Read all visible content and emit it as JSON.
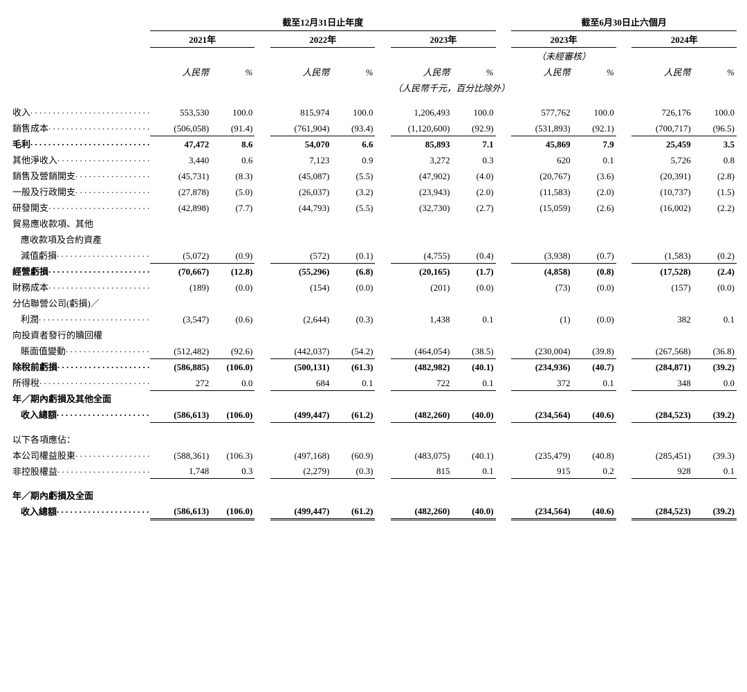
{
  "periods": {
    "annual_header": "截至12月31日止年度",
    "interim_header": "截至6月30日止六個月",
    "years": [
      "2021年",
      "2022年",
      "2023年",
      "2023年",
      "2024年"
    ],
    "unaudited": "（未經審核）",
    "currency": "人民幣",
    "pct": "%",
    "unit_note": "（人民幣千元，百分比除外）"
  },
  "rows": [
    {
      "label": "收入",
      "bold": false,
      "dots": true,
      "vals": [
        "553,530",
        "100.0",
        "815,974",
        "100.0",
        "1,206,493",
        "100.0",
        "577,762",
        "100.0",
        "726,176",
        "100.0"
      ]
    },
    {
      "label": "銷售成本",
      "bold": false,
      "dots": true,
      "ul": "single",
      "vals": [
        "(506,058)",
        "(91.4)",
        "(761,904)",
        "(93.4)",
        "(1,120,600)",
        "(92.9)",
        "(531,893)",
        "(92.1)",
        "(700,717)",
        "(96.5)"
      ]
    },
    {
      "label": "毛利",
      "bold": true,
      "dots": true,
      "vals": [
        "47,472",
        "8.6",
        "54,070",
        "6.6",
        "85,893",
        "7.1",
        "45,869",
        "7.9",
        "25,459",
        "3.5"
      ]
    },
    {
      "label": "其他淨收入",
      "bold": false,
      "dots": true,
      "vals": [
        "3,440",
        "0.6",
        "7,123",
        "0.9",
        "3,272",
        "0.3",
        "620",
        "0.1",
        "5,726",
        "0.8"
      ]
    },
    {
      "label": "銷售及營銷開支",
      "bold": false,
      "dots": true,
      "vals": [
        "(45,731)",
        "(8.3)",
        "(45,087)",
        "(5.5)",
        "(47,902)",
        "(4.0)",
        "(20,767)",
        "(3.6)",
        "(20,391)",
        "(2.8)"
      ]
    },
    {
      "label": "一般及行政開支",
      "bold": false,
      "dots": true,
      "vals": [
        "(27,878)",
        "(5.0)",
        "(26,037)",
        "(3.2)",
        "(23,943)",
        "(2.0)",
        "(11,583)",
        "(2.0)",
        "(10,737)",
        "(1.5)"
      ]
    },
    {
      "label": "研發開支",
      "bold": false,
      "dots": true,
      "vals": [
        "(42,898)",
        "(7.7)",
        "(44,793)",
        "(5.5)",
        "(32,730)",
        "(2.7)",
        "(15,059)",
        "(2.6)",
        "(16,002)",
        "(2.2)"
      ]
    },
    {
      "label": "貿易應收款項、其他",
      "bold": false,
      "nodata": true
    },
    {
      "label": "應收款項及合約資產",
      "bold": false,
      "indent": true,
      "nodata": true
    },
    {
      "label": "減值虧損",
      "bold": false,
      "indent": true,
      "dots": true,
      "ul": "single",
      "vals": [
        "(5,072)",
        "(0.9)",
        "(572)",
        "(0.1)",
        "(4,755)",
        "(0.4)",
        "(3,938)",
        "(0.7)",
        "(1,583)",
        "(0.2)"
      ]
    },
    {
      "label": "經營虧損",
      "bold": true,
      "dots": true,
      "vals": [
        "(70,667)",
        "(12.8)",
        "(55,296)",
        "(6.8)",
        "(20,165)",
        "(1.7)",
        "(4,858)",
        "(0.8)",
        "(17,528)",
        "(2.4)"
      ]
    },
    {
      "label": "財務成本",
      "bold": false,
      "dots": true,
      "vals": [
        "(189)",
        "(0.0)",
        "(154)",
        "(0.0)",
        "(201)",
        "(0.0)",
        "(73)",
        "(0.0)",
        "(157)",
        "(0.0)"
      ]
    },
    {
      "label": "分佔聯營公司(虧損)／",
      "bold": false,
      "nodata": true
    },
    {
      "label": "利潤",
      "bold": false,
      "indent": true,
      "dots": true,
      "vals": [
        "(3,547)",
        "(0.6)",
        "(2,644)",
        "(0.3)",
        "1,438",
        "0.1",
        "(1)",
        "(0.0)",
        "382",
        "0.1"
      ]
    },
    {
      "label": "向投資者發行的贖回權",
      "bold": false,
      "nodata": true
    },
    {
      "label": "賬面值變動",
      "bold": false,
      "indent": true,
      "dots": true,
      "ul": "single",
      "vals": [
        "(512,482)",
        "(92.6)",
        "(442,037)",
        "(54.2)",
        "(464,054)",
        "(38.5)",
        "(230,004)",
        "(39.8)",
        "(267,568)",
        "(36.8)"
      ]
    },
    {
      "label": "除稅前虧損",
      "bold": true,
      "dots": true,
      "vals": [
        "(586,885)",
        "(106.0)",
        "(500,131)",
        "(61.3)",
        "(482,982)",
        "(40.1)",
        "(234,936)",
        "(40.7)",
        "(284,871)",
        "(39.2)"
      ]
    },
    {
      "label": "所得稅",
      "bold": false,
      "dots": true,
      "ul": "single",
      "vals": [
        "272",
        "0.0",
        "684",
        "0.1",
        "722",
        "0.1",
        "372",
        "0.1",
        "348",
        "0.0"
      ]
    },
    {
      "label": "年／期內虧損及其他全面",
      "bold": true,
      "nodata": true
    },
    {
      "label": "收入總額",
      "bold": true,
      "indent": true,
      "dots": true,
      "ul": "single",
      "vals": [
        "(586,613)",
        "(106.0)",
        "(499,447)",
        "(61.2)",
        "(482,260)",
        "(40.0)",
        "(234,564)",
        "(40.6)",
        "(284,523)",
        "(39.2)"
      ]
    },
    {
      "spacer": true
    },
    {
      "label": "以下各項應佔：",
      "bold": false,
      "nodata": true
    },
    {
      "label": "本公司權益股東",
      "bold": false,
      "dots": true,
      "vals": [
        "(588,361)",
        "(106.3)",
        "(497,168)",
        "(60.9)",
        "(483,075)",
        "(40.1)",
        "(235,479)",
        "(40.8)",
        "(285,451)",
        "(39.3)"
      ]
    },
    {
      "label": "非控股權益",
      "bold": false,
      "dots": true,
      "ul": "single",
      "vals": [
        "1,748",
        "0.3",
        "(2,279)",
        "(0.3)",
        "815",
        "0.1",
        "915",
        "0.2",
        "928",
        "0.1"
      ]
    },
    {
      "spacer": true
    },
    {
      "label": "年／期內虧損及全面",
      "bold": true,
      "nodata": true
    },
    {
      "label": "收入總額",
      "bold": true,
      "indent": true,
      "dots": true,
      "ul": "double",
      "vals": [
        "(586,613)",
        "(106.0)",
        "(499,447)",
        "(61.2)",
        "(482,260)",
        "(40.0)",
        "(234,564)",
        "(40.6)",
        "(284,523)",
        "(39.2)"
      ]
    }
  ]
}
